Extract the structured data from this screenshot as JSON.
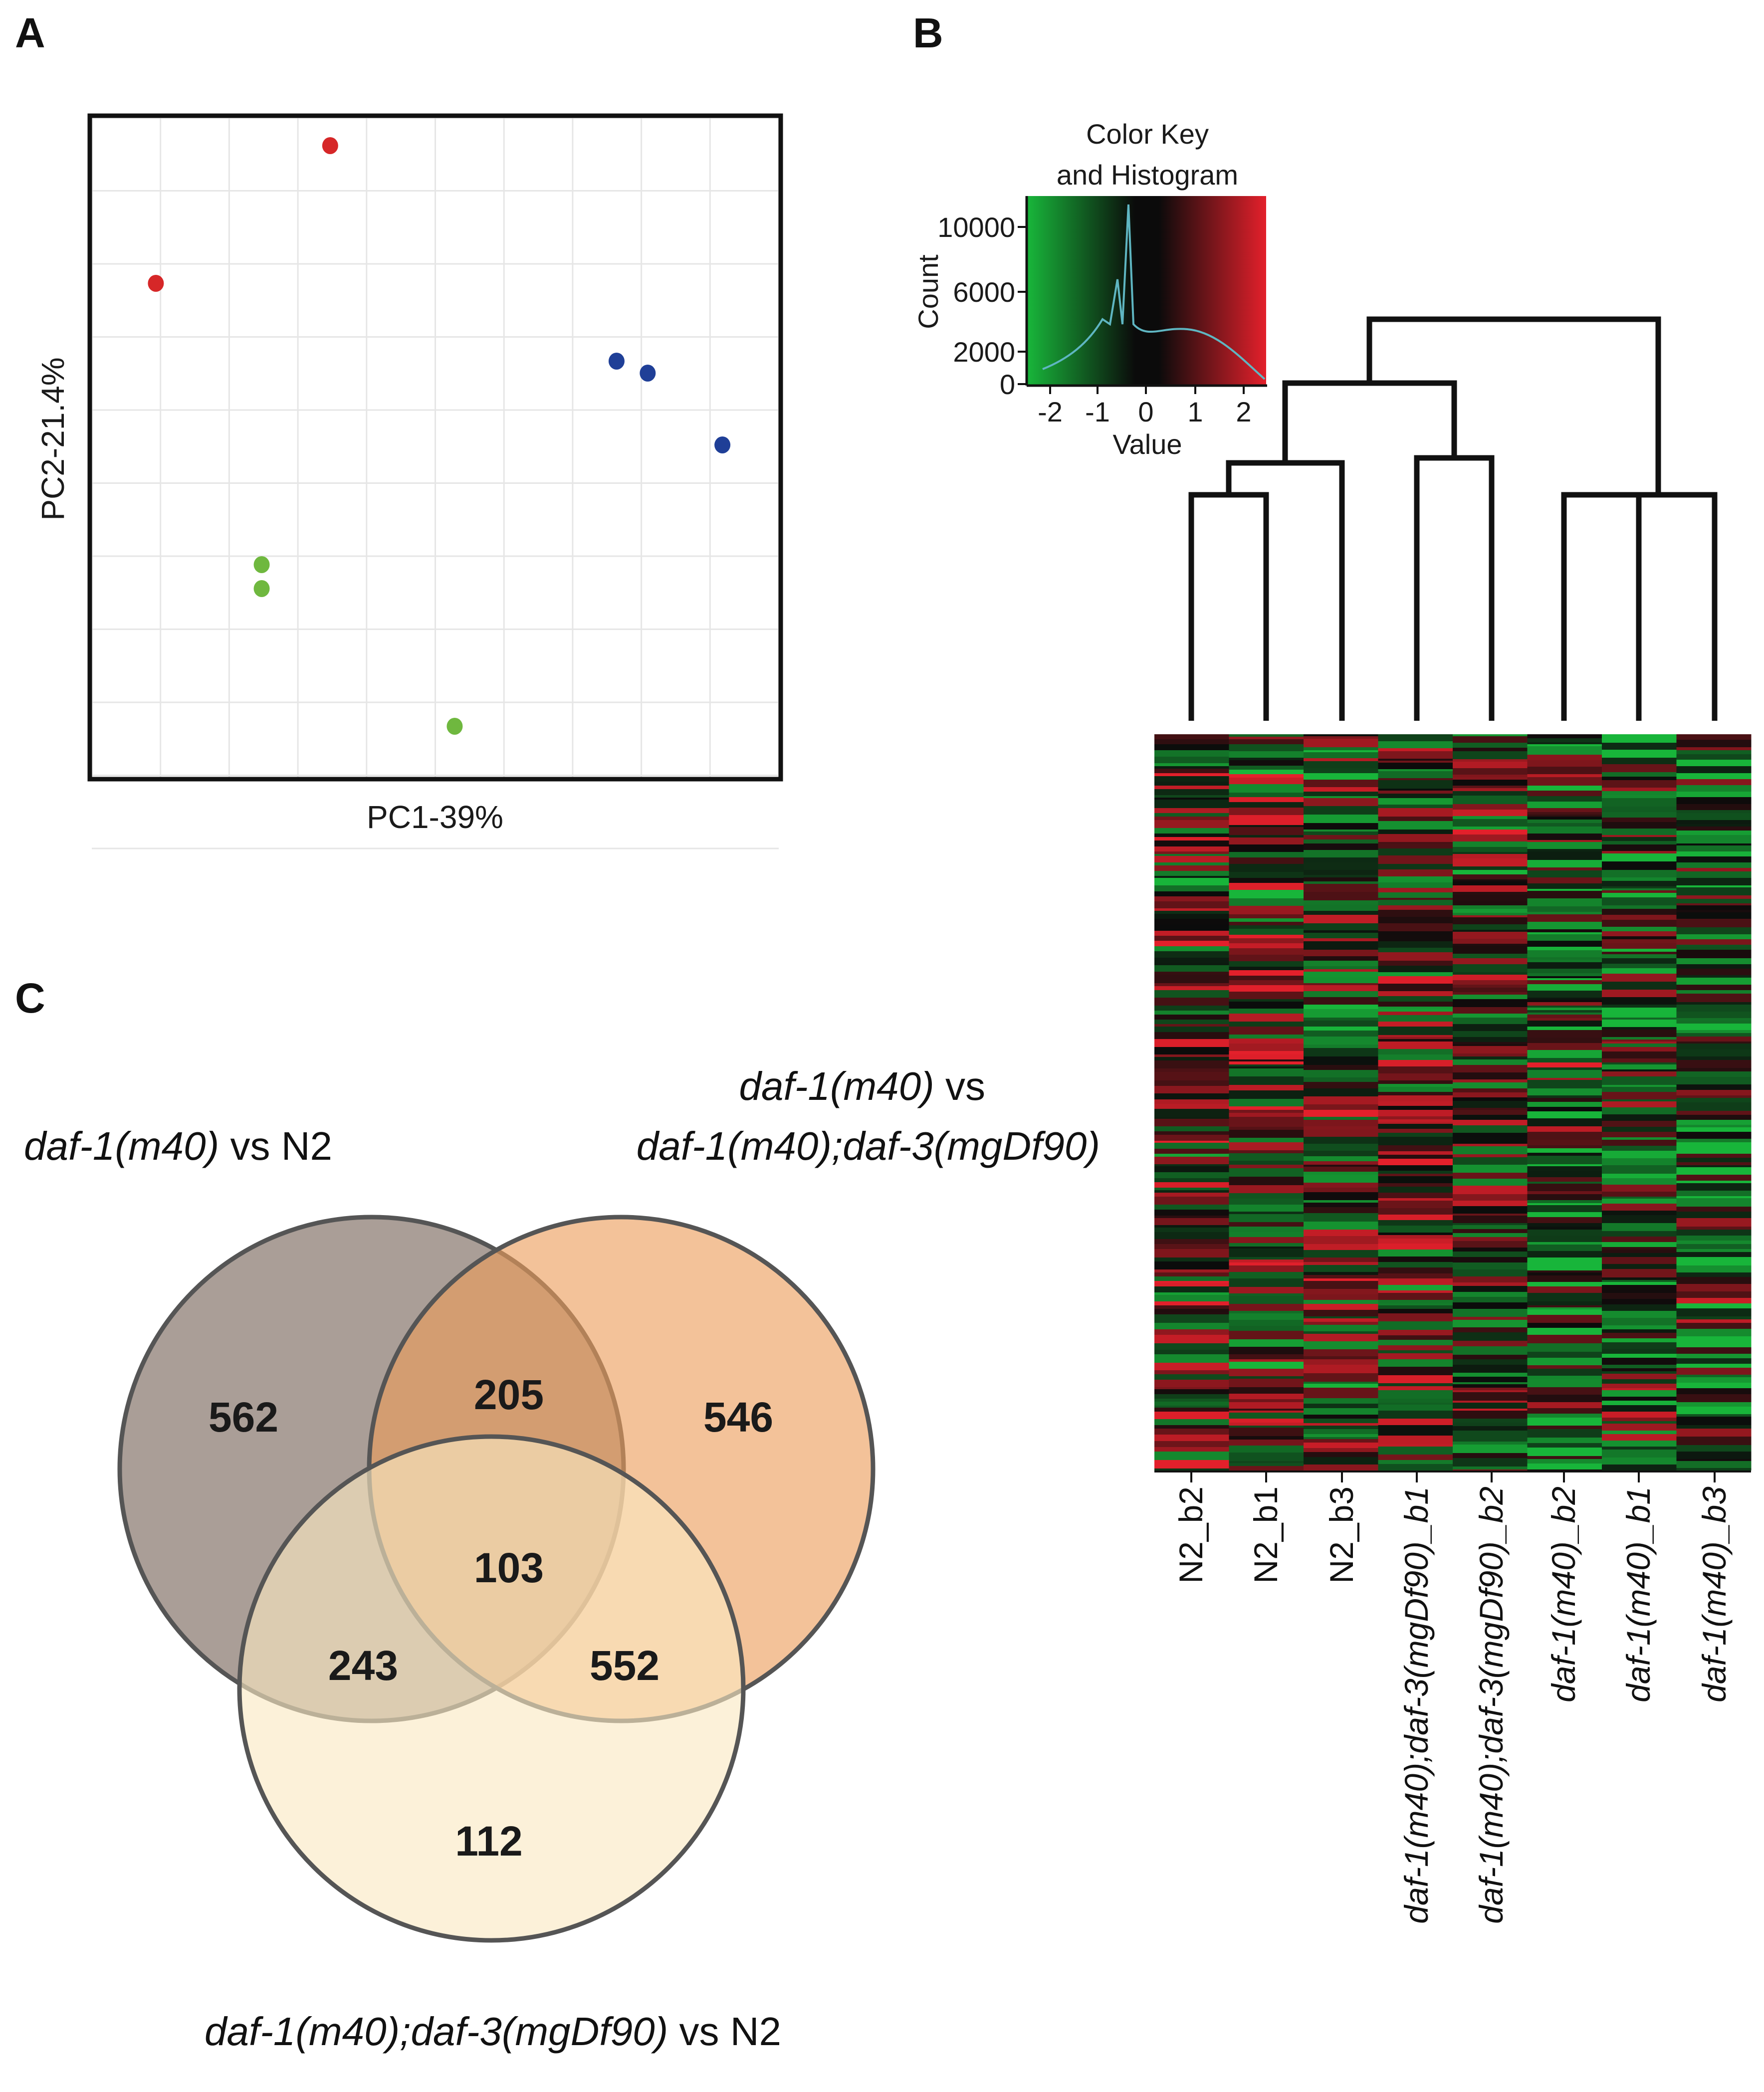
{
  "panels": {
    "a": "A",
    "b": "B",
    "c": "C"
  },
  "chart_data": [
    {
      "type": "scatter",
      "panel": "A",
      "xlabel": "PC1-39%",
      "ylabel": "PC2-21.4%",
      "xlim": [
        0,
        10
      ],
      "ylim": [
        0,
        10
      ],
      "grid": true,
      "series": [
        {
          "name": "group-red",
          "color": "#d62728",
          "points": [
            [
              0.5,
              7.7
            ],
            [
              3.3,
              10.0
            ]
          ]
        },
        {
          "name": "group-blue",
          "color": "#1f3f97",
          "points": [
            [
              7.9,
              6.4
            ],
            [
              8.4,
              6.2
            ],
            [
              9.6,
              5.0
            ]
          ]
        },
        {
          "name": "group-green",
          "color": "#6fb83f",
          "points": [
            [
              2.2,
              3.0
            ],
            [
              2.2,
              2.6
            ],
            [
              5.3,
              0.3
            ]
          ]
        }
      ]
    },
    {
      "type": "heatmap",
      "panel": "B",
      "samples": [
        "N2_b2",
        "N2_b1",
        "N2_b3",
        "daf-1(m40);daf-3(mgDf90)_b1",
        "daf-1(m40);daf-3(mgDf90)_b2",
        "daf-1(m40)_b2",
        "daf-1(m40)_b1",
        "daf-1(m40)_b3"
      ],
      "color_key": {
        "title_line1": "Color Key",
        "title_line2": "and Histogram",
        "xlabel": "Value",
        "ylabel": "Count",
        "x_ticks": [
          "-2",
          "-1",
          "0",
          "1",
          "2"
        ],
        "y_ticks": [
          "10000",
          "6000",
          "2000",
          "0"
        ],
        "colors": {
          "low": "#18b53a",
          "mid": "#0b0b0b",
          "high": "#e3202b"
        }
      }
    },
    {
      "type": "venn",
      "panel": "C",
      "sets": [
        {
          "name": "daf-1(m40) vs N2",
          "color": "#8e7e74"
        },
        {
          "name": "daf-1(m40) vs daf-1(m40);daf-3(mgDf90)",
          "color": "#eb9c5a"
        },
        {
          "name": "daf-1(m40);daf-3(mgDf90) vs N2",
          "color": "#fae9c1"
        }
      ],
      "regions": {
        "only_1": 562,
        "only_2": 546,
        "only_3": 112,
        "1_and_2": 205,
        "1_and_3": 243,
        "2_and_3": 552,
        "all_three": 103
      }
    }
  ],
  "venn_labels": {
    "set1_italic": "daf-1(m40)",
    "set1_rest": " vs N2",
    "set2_line1_italic": "daf-1(m40)",
    "set2_line1_rest": " vs",
    "set2_line2_italic": "daf-1(m40);daf-3(mgDf90)",
    "set3_italic": "daf-1(m40);daf-3(mgDf90)",
    "set3_rest": " vs N2"
  }
}
